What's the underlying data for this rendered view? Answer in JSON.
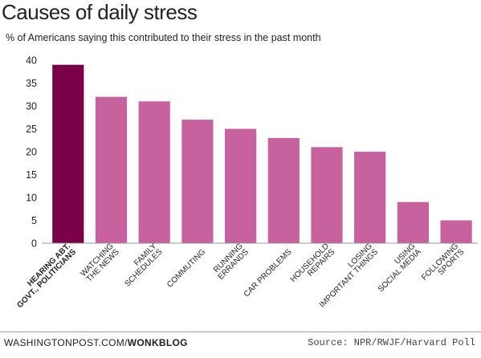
{
  "title": "Causes of daily stress",
  "subtitle": "% of Americans saying this contributed to their stress in the past month",
  "footer": {
    "site": "WASHINGTONPOST.COM/",
    "section": "WONKBLOG",
    "source": "Source: NPR/RWJF/Harvard Poll"
  },
  "colors": {
    "highlight": "#7a0047",
    "bar": "#c7629e",
    "axis": "#999999"
  },
  "chart_data": {
    "type": "bar",
    "title": "Causes of daily stress",
    "subtitle": "% of Americans saying this contributed to their stress in the past month",
    "xlabel": "",
    "ylabel": "",
    "ylim": [
      0,
      40
    ],
    "yticks": [
      0,
      5,
      10,
      15,
      20,
      25,
      30,
      35,
      40
    ],
    "grid": false,
    "categories": [
      [
        "HEARING ABT.",
        "GOVT., POLITICIANS"
      ],
      [
        "WATCHING",
        "THE NEWS"
      ],
      [
        "FAMILY",
        "SCHEDULES"
      ],
      [
        "COMMUTING"
      ],
      [
        "RUNNING",
        "ERRANDS"
      ],
      [
        "CAR PROBLEMS"
      ],
      [
        "HOUSEHOLD",
        "REPAIRS"
      ],
      [
        "LOSING",
        "IMPORTANT THINGS"
      ],
      [
        "USING",
        "SOCIAL MEDIA"
      ],
      [
        "FOLLOWING",
        "SPORTS"
      ]
    ],
    "values": [
      39,
      32,
      31,
      27,
      25,
      23,
      21,
      20,
      9,
      5
    ],
    "highlight_index": 0
  }
}
